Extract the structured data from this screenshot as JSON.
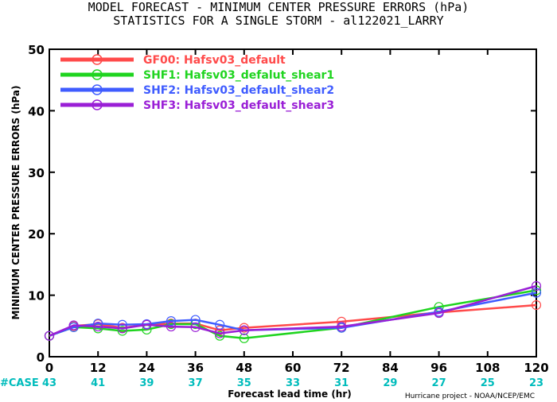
{
  "chart_data": {
    "type": "line",
    "title": "MODEL FORECAST - MINIMUM CENTER PRESSURE ERRORS (hPa)",
    "subtitle": "STATISTICS FOR A SINGLE STORM - al122021_LARRY",
    "xlabel": "Forecast lead time (hr)",
    "ylabel": "MINIMUM CENTER PRESSURE ERRORS (hPa)",
    "xlim": [
      0,
      120
    ],
    "ylim": [
      0,
      50
    ],
    "x_ticks": [
      "0",
      "12",
      "24",
      "36",
      "48",
      "60",
      "72",
      "84",
      "96",
      "108",
      "120"
    ],
    "y_ticks": [
      "0",
      "10",
      "20",
      "30",
      "40",
      "50"
    ],
    "grid": false,
    "legend_position": "top-left",
    "case_label": "#CASE",
    "case_counts": [
      "43",
      "41",
      "39",
      "37",
      "35",
      "33",
      "31",
      "29",
      "27",
      "25",
      "23"
    ],
    "credit": "Hurricane project - NOAA/NCEP/EMC",
    "series": [
      {
        "name": "GF00: Hafsv03_default",
        "color": "#ff4a4a",
        "x": [
          0,
          6,
          12,
          18,
          24,
          30,
          36,
          42,
          48,
          72,
          96,
          120
        ],
        "y": [
          3.4,
          5.0,
          5.3,
          4.7,
          5.2,
          5.4,
          5.4,
          4.3,
          4.7,
          5.7,
          7.2,
          8.4
        ]
      },
      {
        "name": "SHF1: Hafsv03_defalut_shear1",
        "color": "#1fd41f",
        "x": [
          0,
          6,
          12,
          18,
          24,
          30,
          36,
          42,
          48,
          72,
          96,
          120
        ],
        "y": [
          3.4,
          4.8,
          4.6,
          4.2,
          4.4,
          5.3,
          5.3,
          3.4,
          3.0,
          4.7,
          8.1,
          10.8
        ]
      },
      {
        "name": "SHF2: Hafsv03_default_shear2",
        "color": "#3f5cff",
        "x": [
          0,
          6,
          12,
          18,
          24,
          30,
          36,
          42,
          48,
          72,
          96,
          120
        ],
        "y": [
          3.4,
          4.8,
          5.4,
          5.2,
          5.3,
          5.8,
          6.0,
          5.2,
          4.3,
          4.7,
          7.3,
          10.4
        ]
      },
      {
        "name": "SHF3: Hafsv03_default_shear3",
        "color": "#9a1fd6",
        "x": [
          0,
          6,
          12,
          18,
          24,
          30,
          36,
          42,
          48,
          72,
          96,
          120
        ],
        "y": [
          3.4,
          5.1,
          4.9,
          4.6,
          5.2,
          4.9,
          4.8,
          3.8,
          4.3,
          4.9,
          7.1,
          11.5
        ]
      }
    ]
  },
  "colors": {
    "case_counts": "#00bcbc",
    "axis": "#000000"
  }
}
